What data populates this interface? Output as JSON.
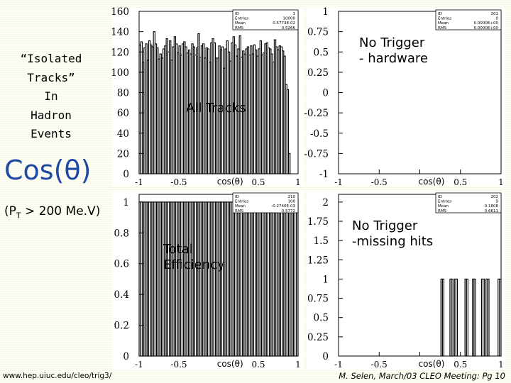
{
  "slide": {
    "title_lines": [
      "“Isolated",
      "Tracks”",
      "In",
      "Hadron",
      "Events"
    ],
    "cos_heading": "Cos(θ)",
    "pt_cut_prefix": "(P",
    "pt_cut_sub": "T",
    "pt_cut_suffix": " > 200 Me.V)",
    "url": "www.hep.uiuc.edu/cleo/trig3/",
    "credit": "M. Selen, March/03 CLEO Meeting: Pg 10"
  },
  "annotations": {
    "all_tracks": "All Tracks",
    "no_trigger_hw": [
      "No Trigger",
      "- hardware"
    ],
    "total_efficiency": [
      "Total",
      "Efficiency"
    ],
    "no_trigger_mh": [
      "No Trigger",
      "-missing hits"
    ]
  },
  "colors": {
    "heading": "#1f4aa3",
    "frame": "#000000",
    "panel_bg": "#ffffff"
  },
  "chart_data": [
    {
      "type": "bar",
      "id": "all_tracks",
      "xlabel": "cos(θ)",
      "xlim": [
        -1,
        1
      ],
      "ylim": [
        0,
        160
      ],
      "yticks": [
        "0",
        "20",
        "40",
        "60",
        "80",
        "100",
        "120",
        "140",
        "160"
      ],
      "xticks": [
        "-1",
        "-0.5",
        "0",
        "0.5",
        "1"
      ],
      "xtick_values": [
        -1,
        -0.5,
        0,
        0.5,
        1
      ],
      "stats": [
        [
          "ID",
          "1"
        ],
        [
          "Entries",
          "10000"
        ],
        [
          "Mean",
          "0.5773E-02"
        ],
        [
          "RMS",
          "0.5266"
        ]
      ],
      "values": [
        127,
        130,
        110,
        124,
        128,
        112,
        131,
        127,
        125,
        140,
        128,
        124,
        113,
        118,
        114,
        123,
        126,
        133,
        120,
        131,
        112,
        125,
        135,
        128,
        119,
        126,
        117,
        128,
        130,
        125,
        119,
        122,
        118,
        128,
        125,
        117,
        124,
        138,
        115,
        126,
        128,
        114,
        124,
        123,
        110,
        129,
        133,
        129,
        114,
        114,
        126,
        122,
        125,
        104,
        123,
        131,
        120,
        111,
        129,
        135,
        127,
        116,
        123,
        136,
        115,
        121,
        118,
        123,
        125,
        117,
        126,
        118,
        127,
        122,
        116,
        123,
        131,
        117,
        119,
        128,
        129,
        124,
        123,
        118,
        110,
        132,
        125,
        122,
        126,
        125,
        121,
        116,
        88,
        83,
        20,
        0,
        0,
        0,
        0,
        0
      ]
    },
    {
      "type": "bar",
      "id": "no_trigger_hardware",
      "xlabel": "cos(θ)",
      "xlim": [
        -1,
        1
      ],
      "ylim": [
        -1,
        1
      ],
      "yticks": [
        "-1",
        "-0.75",
        "-0.5",
        "-0.25",
        "0",
        "0.25",
        "0.5",
        "0.75",
        "1"
      ],
      "xticks": [
        "-1",
        "-0.5",
        "0",
        "0.5",
        "1"
      ],
      "xtick_values": [
        -1,
        -0.5,
        0,
        0.5,
        1
      ],
      "stats": [
        [
          "ID",
          "201"
        ],
        [
          "Entries",
          "0"
        ],
        [
          "Mean",
          "0.0000E+00"
        ],
        [
          "RMS",
          "0.0000E+00"
        ]
      ],
      "values": []
    },
    {
      "type": "bar",
      "id": "total_efficiency",
      "xlabel": "cos(θ)",
      "xlim": [
        -1,
        1
      ],
      "ylim": [
        0,
        1.05
      ],
      "yticks": [
        "0",
        "0.2",
        "0.4",
        "0.6",
        "0.8",
        "1"
      ],
      "xticks": [
        "-1",
        "-0.5",
        "0",
        "0.5",
        "1"
      ],
      "xtick_values": [
        -1,
        -0.5,
        0,
        0.5,
        1
      ],
      "stats": [
        [
          "ID",
          "210"
        ],
        [
          "Entries",
          "100"
        ],
        [
          "Mean",
          "-0.2740E-03"
        ],
        [
          "RMS",
          "0.5772"
        ]
      ],
      "values": [
        1,
        1,
        1,
        1,
        1,
        1,
        1,
        1,
        1,
        1,
        1,
        1,
        1,
        1,
        1,
        1,
        1,
        1,
        1,
        1,
        1,
        1,
        1,
        1,
        1,
        1,
        1,
        1,
        1,
        1,
        1,
        1,
        1,
        1,
        1,
        1,
        1,
        1,
        1,
        1,
        1,
        1,
        1,
        1,
        1,
        1,
        1,
        1,
        1,
        1,
        1,
        1,
        1,
        1,
        1,
        1,
        1,
        1,
        1,
        1,
        1,
        1,
        1,
        1,
        1,
        1,
        1,
        1,
        1,
        1,
        1,
        1,
        1,
        1,
        1,
        1,
        1,
        1,
        1,
        1,
        1,
        1,
        1,
        1,
        1,
        1,
        1,
        1,
        1,
        1,
        1,
        1,
        1,
        1,
        1,
        1,
        1,
        1,
        1,
        1
      ]
    },
    {
      "type": "bar",
      "id": "no_trigger_missing_hits",
      "xlabel": "cos(θ)",
      "xlim": [
        -1,
        1
      ],
      "ylim": [
        0,
        2.1
      ],
      "yticks": [
        "0",
        "0.25",
        "0.5",
        "0.75",
        "1",
        "1.25",
        "1.5",
        "1.75",
        "2"
      ],
      "xticks": [
        "-1",
        "-0.5",
        "0",
        "0.5",
        "1"
      ],
      "xtick_values": [
        -1,
        -0.5,
        0,
        0.5,
        1
      ],
      "stats": [
        [
          "ID",
          "202"
        ],
        [
          "Entries",
          "9"
        ],
        [
          "Mean",
          "0.1808"
        ],
        [
          "RMS",
          "0.6611"
        ]
      ],
      "values": [
        0,
        0,
        0,
        0,
        0,
        0,
        0,
        0,
        0,
        0,
        0,
        0,
        0,
        0,
        0,
        0,
        0,
        0,
        0,
        0,
        0,
        0,
        0,
        0,
        0,
        0,
        0,
        0,
        0,
        0,
        0,
        0,
        0,
        0,
        0,
        0,
        0,
        0,
        0,
        0,
        0,
        0,
        0,
        0,
        0,
        0,
        0,
        0,
        0,
        0,
        0,
        0,
        0,
        0,
        0,
        0,
        0,
        0,
        0,
        0,
        0,
        0,
        0,
        0,
        0,
        0,
        0,
        0,
        1,
        1,
        0,
        0,
        0,
        0,
        1,
        1,
        0,
        1,
        1,
        0,
        0,
        0,
        0,
        0,
        1,
        1,
        0,
        0,
        0,
        1,
        1,
        0,
        0,
        0,
        0,
        1,
        1,
        0,
        1,
        1,
        0,
        0,
        0,
        0,
        0,
        0,
        1,
        1
      ]
    }
  ]
}
